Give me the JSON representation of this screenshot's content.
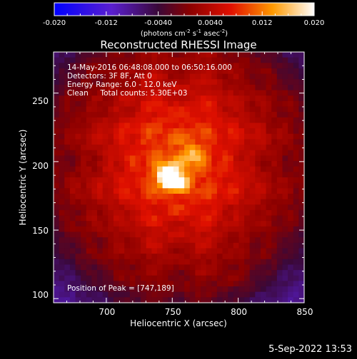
{
  "colorbar": {
    "ticks": [
      "-0.020",
      "-0.012",
      "-0.0040",
      "0.0040",
      "0.012",
      "0.020"
    ],
    "unit_label": "(photons cm-2 s-1 asec-2)",
    "unit_parts": [
      "(photons cm",
      "-2",
      " s",
      "-1",
      " asec",
      "-2",
      ")"
    ],
    "range": [
      -0.02,
      0.02
    ],
    "colormap": "blue-purple-red-yellow-white"
  },
  "chart_data": {
    "type": "heatmap",
    "title": "Reconstructed RHESSI Image",
    "xlabel": "Heliocentric X (arcsec)",
    "ylabel": "Heliocentric Y (arcsec)",
    "xlim": [
      660,
      850
    ],
    "ylim": [
      97,
      280
    ],
    "x_ticks": [
      700,
      750,
      800,
      850
    ],
    "y_ticks": [
      100,
      150,
      200,
      250
    ],
    "x_tick_labels": [
      "700",
      "750",
      "800",
      "850"
    ],
    "y_tick_labels": [
      "100",
      "150",
      "200",
      "250"
    ],
    "annotations": [
      "14-May-2016 06:48:08.000 to 06:50:16.000",
      "Detectors: 3F 8F, Att 0",
      "Energy Range: 6.0 - 12.0 keV",
      "Clean     Total counts: 5.30E+03"
    ],
    "peak_label": "Position of Peak = [747,189]",
    "peak": [
      747,
      189
    ],
    "secondary_sources": [
      [
        765,
        205
      ],
      [
        758,
        185
      ]
    ],
    "value_range": [
      -0.02,
      0.02
    ]
  },
  "footer": {
    "date": "5-Sep-2022 13:53"
  }
}
